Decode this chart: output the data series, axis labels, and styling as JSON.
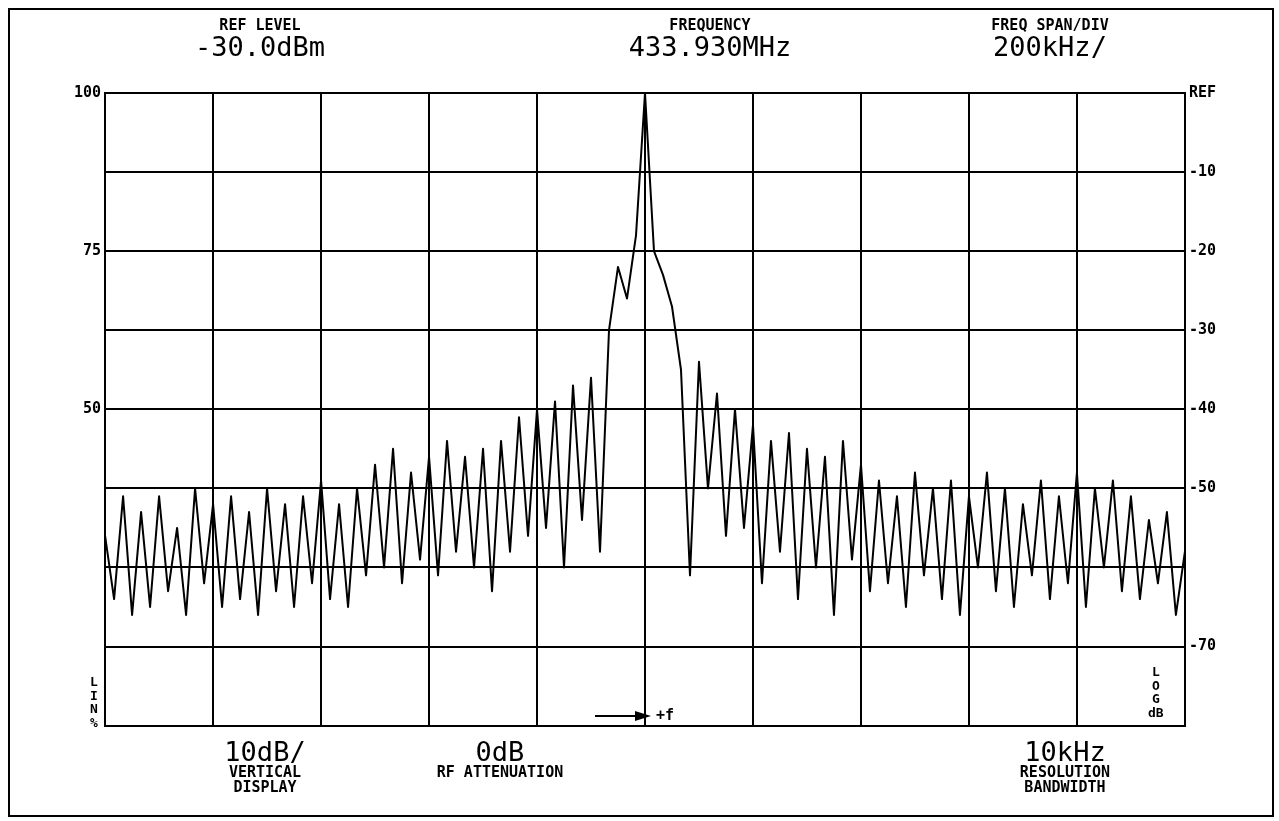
{
  "chart_data": {
    "type": "line",
    "annotations": [
      "REF LEVEL",
      "-30.0dBm",
      "FREQUENCY",
      "433.930MHz",
      "FREQ SPAN/DIV",
      "200kHz/",
      "10dB/",
      "VERTICAL DISPLAY",
      "0dB",
      "RF ATTENUATION",
      "10kHz",
      "RESOLUTION BANDWIDTH",
      "+f"
    ],
    "ylabel": "LOG dB",
    "y2label": "LIN %",
    "categories": [
      null,
      null,
      null,
      null,
      null,
      null,
      null,
      null,
      null,
      null,
      null,
      null,
      null,
      null,
      null,
      null,
      null,
      null,
      null,
      null,
      null,
      null,
      null,
      null,
      null,
      null,
      null,
      null,
      null,
      null,
      null,
      null,
      null,
      null,
      null,
      null,
      null,
      null,
      null,
      null,
      null,
      null,
      null,
      null,
      null,
      null,
      null,
      null,
      null,
      null,
      null,
      null,
      null,
      null,
      null,
      null,
      null,
      null,
      null,
      null,
      null,
      null,
      null,
      null,
      null,
      null,
      null,
      null,
      null,
      null,
      null,
      null,
      null,
      null,
      null,
      null,
      null,
      null,
      null,
      null,
      null,
      null,
      null,
      null,
      null,
      null,
      null,
      null,
      null,
      null,
      null,
      null,
      null,
      null,
      null,
      null,
      null,
      null,
      null,
      null,
      null,
      null,
      null,
      null,
      null,
      null,
      null,
      null,
      null,
      null,
      null,
      null,
      null,
      null,
      null,
      null,
      null,
      null,
      null,
      null,
      null
    ],
    "series": [
      {
        "color": "#000000",
        "values": [
          -56,
          -64,
          -51,
          -66,
          -53,
          -65,
          -51,
          -63,
          -55,
          -66,
          -50,
          -62,
          -52,
          -65,
          -51,
          -64,
          -53,
          -66,
          -50,
          -63,
          -52,
          -65,
          -51,
          -62,
          -49,
          -64,
          -52,
          -65,
          -50,
          -61,
          -47,
          -60,
          -45,
          -62,
          -48,
          -59,
          -46,
          -61,
          -44,
          -58,
          -46,
          -60,
          -45,
          -63,
          -44,
          -58,
          -41,
          -56,
          -40,
          -55,
          -39,
          -60,
          -37,
          -54,
          -36,
          -58,
          -30,
          -22,
          -26,
          -18,
          0,
          -20,
          -23,
          -27,
          -35,
          -61,
          -34,
          -50,
          -38,
          -56,
          -40,
          -55,
          -42,
          -62,
          -44,
          -58,
          -43,
          -64,
          -45,
          -60,
          -46,
          -66,
          -44,
          -59,
          -47,
          -63,
          -49,
          -62,
          -51,
          -65,
          -48,
          -61,
          -50,
          -64,
          -49,
          -66,
          -51,
          -60,
          -48,
          -63,
          -50,
          -65,
          -52,
          -61,
          -49,
          -64,
          -51,
          -62,
          -48,
          -65,
          -50,
          -60,
          -49,
          -63,
          -51,
          -64,
          -54,
          -62,
          -53,
          -66,
          -58
        ]
      }
    ],
    "ylim": [
      -80,
      0
    ],
    "yticks": [
      {
        "value": 0,
        "label": "REF"
      },
      -10,
      -20,
      -30,
      -40,
      -50,
      {
        "value": -60,
        "label": null
      },
      -70
    ],
    "y2lim": [
      0,
      100
    ],
    "y2ticks": [
      100,
      75,
      50
    ],
    "grid": true,
    "legend": false,
    "marker": "none",
    "line_style": "solid"
  }
}
